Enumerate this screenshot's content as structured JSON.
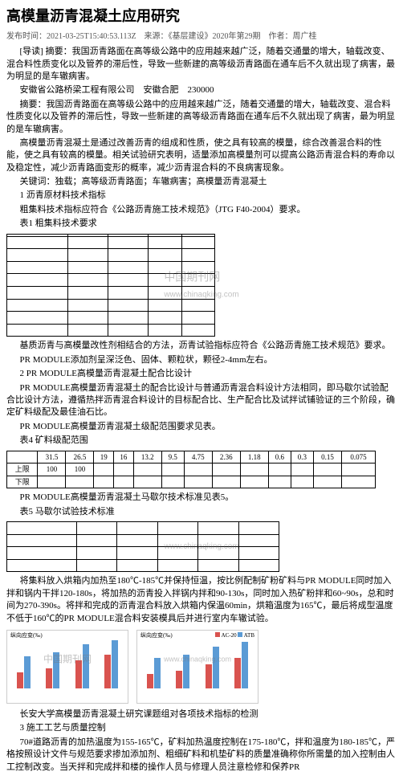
{
  "title": "高模量沥青混凝土应用研究",
  "meta": "发布时间：2021-03-25T15:40:53.113Z　来源：《基层建设》2020年第29期　作者：周广桂",
  "p1": "[导读] 摘要：我国沥青路面在高等级公路中的应用越来越广泛，随着交通量的增大，轴载改变、混合料性质变化以及管养的滞后性，导致一些新建的高等级沥青路面在通车后不久就出现了病害，最为明显的是车辙病害。",
  "org": "安徽省公路桥梁工程有限公司　安徽合肥　230000",
  "p2": "摘要：我国沥青路面在高等级公路中的应用越来越广泛，随着交通量的增大，轴载改变、混合料性质变化以及管养的滞后性，导致一些新建的高等级沥青路面在通车后不久就出现了病害，最为明显的是车辙病害。",
  "p3": "高模量沥青混凝土是通过改善沥青的组成和性质，使之具有较高的模量，综合改善混合料的性能，使之具有较高的模量。相关试验研究表明，适量添加高模量剂可以提高公路沥青混合料的寿命以及稳定性，减少沥青路面变形的概率，减少沥青混合料的不良病害现象。",
  "p4": "关键词：独载；高等级沥青路面；车辙病害；高模量沥青混凝土",
  "s1": "1 沥青原材料技术指标",
  "p5": "粗集料技术指标应符合《公路沥青施工技术规范》（JTG F40-2004）要求。",
  "t1cap": "表1 粗集料技术要求",
  "table1": {
    "rows": [
      [
        "",
        "",
        "",
        "",
        ""
      ],
      [
        "",
        "",
        "",
        "",
        ""
      ],
      [
        "",
        "",
        "",
        "",
        ""
      ],
      [
        "",
        "",
        "",
        "",
        ""
      ],
      [
        "",
        "",
        "",
        "",
        ""
      ],
      [
        "",
        "",
        "",
        "",
        ""
      ],
      [
        "",
        "",
        "",
        "",
        ""
      ],
      [
        "",
        "",
        "",
        "",
        ""
      ],
      [
        "",
        "",
        "",
        "",
        ""
      ]
    ]
  },
  "wm": "中国期刊网",
  "wm2": "www.chinaqking.com",
  "p6": "基质沥青与高模量改性剂相结合的方法，沥青试验指标应符合《公路沥青施工技术规范》要求。",
  "p7": "PR MODULE添加剂呈深泛色、固体、颗粒状，颗径2-4mm左右。",
  "s2": "2 PR MODULE高模量沥青混凝土配合比设计",
  "p8": "PR MODULE高模量沥青混凝土的配合比设计与普通沥青混合料设计方法相同，即马歇尔试验配合比设计方法，遵循热拌沥青混合料设计的目标配合比、生产配合比及试拌试铺验证的三个阶段，确定矿料级配及最佳油石比。",
  "t4cap": "表4 矿料级配范围",
  "p9": "PR MODULE高模量沥青混凝土级配范围要求见表。",
  "table4": {
    "head": [
      "",
      "31.5",
      "26.5",
      "19",
      "16",
      "13.2",
      "9.5",
      "4.75",
      "2.36",
      "1.18",
      "0.6",
      "0.3",
      "0.15",
      "0.075"
    ],
    "r1": [
      "上限",
      "100",
      "100",
      "",
      "",
      "",
      "",
      "",
      "",
      "",
      "",
      "",
      "",
      ""
    ],
    "r2": [
      "下限",
      "",
      "",
      "",
      "",
      "",
      "",
      "",
      "",
      "",
      "",
      "",
      "",
      ""
    ]
  },
  "p10": "PR MODULE高模量沥青混凝土马歇尔技术标准见表5。",
  "t5cap": "表5 马歇尔试验技术标准",
  "table5": {
    "rows": [
      [
        "",
        "",
        "",
        "",
        "",
        ""
      ],
      [
        "",
        "",
        "",
        "",
        "",
        ""
      ],
      [
        "",
        "",
        "",
        "",
        "",
        ""
      ],
      [
        "",
        "",
        "",
        "",
        "",
        ""
      ]
    ]
  },
  "p11": "将集料放入烘箱内加热至180℃-185℃并保持恒温，按比例配制矿粉矿料与PR MODULE同时加入拌和锅内干拌120-180s，将加热的沥青投入拌锅内拌和90-130s，同时加入热矿粉拌和60~90s，总和时间为270-390s。将拌和完成的沥青混合料放入烘箱内保温60min，烘箱温度为165℃，最后将成型温度不低于160℃的PR MODULE混合料安装模具后并进行室内车辙试验。",
  "charts": {
    "c1_title": "纵向应变(‰)",
    "c2_title": "纵向应变(‰)",
    "legend": [
      "AC-20",
      "ATB"
    ],
    "colors": {
      "a": "#d9534f",
      "b": "#5b9bd5",
      "grid": "#dddddd"
    },
    "font_size": 7,
    "bars1": [
      {
        "a": 20,
        "b": 40
      },
      {
        "a": 25,
        "b": 45
      },
      {
        "a": 35,
        "b": 55
      },
      {
        "a": 42,
        "b": 60
      }
    ],
    "bars2": [
      {
        "a": 18,
        "b": 38
      },
      {
        "a": 22,
        "b": 42
      },
      {
        "a": 30,
        "b": 52
      },
      {
        "a": 38,
        "b": 58
      }
    ]
  },
  "p12": "长安大学高模量沥青混凝土研究课题组对各项技术指标的检测",
  "s3": "3 施工工艺与质量控制",
  "p13": "70#道路沥青的加热温度为155-165℃，矿料加热温度控制在175-180℃，拌和温度为180-185℃，严格按照设计文件与规范要求掺加添加剂、粗细矿料和机垫矿料的质量准确称你所需量的加入控制由人工控制改变。当天拌和完成拌和楼的操作人员与修理人员注意检修和保养PR"
}
